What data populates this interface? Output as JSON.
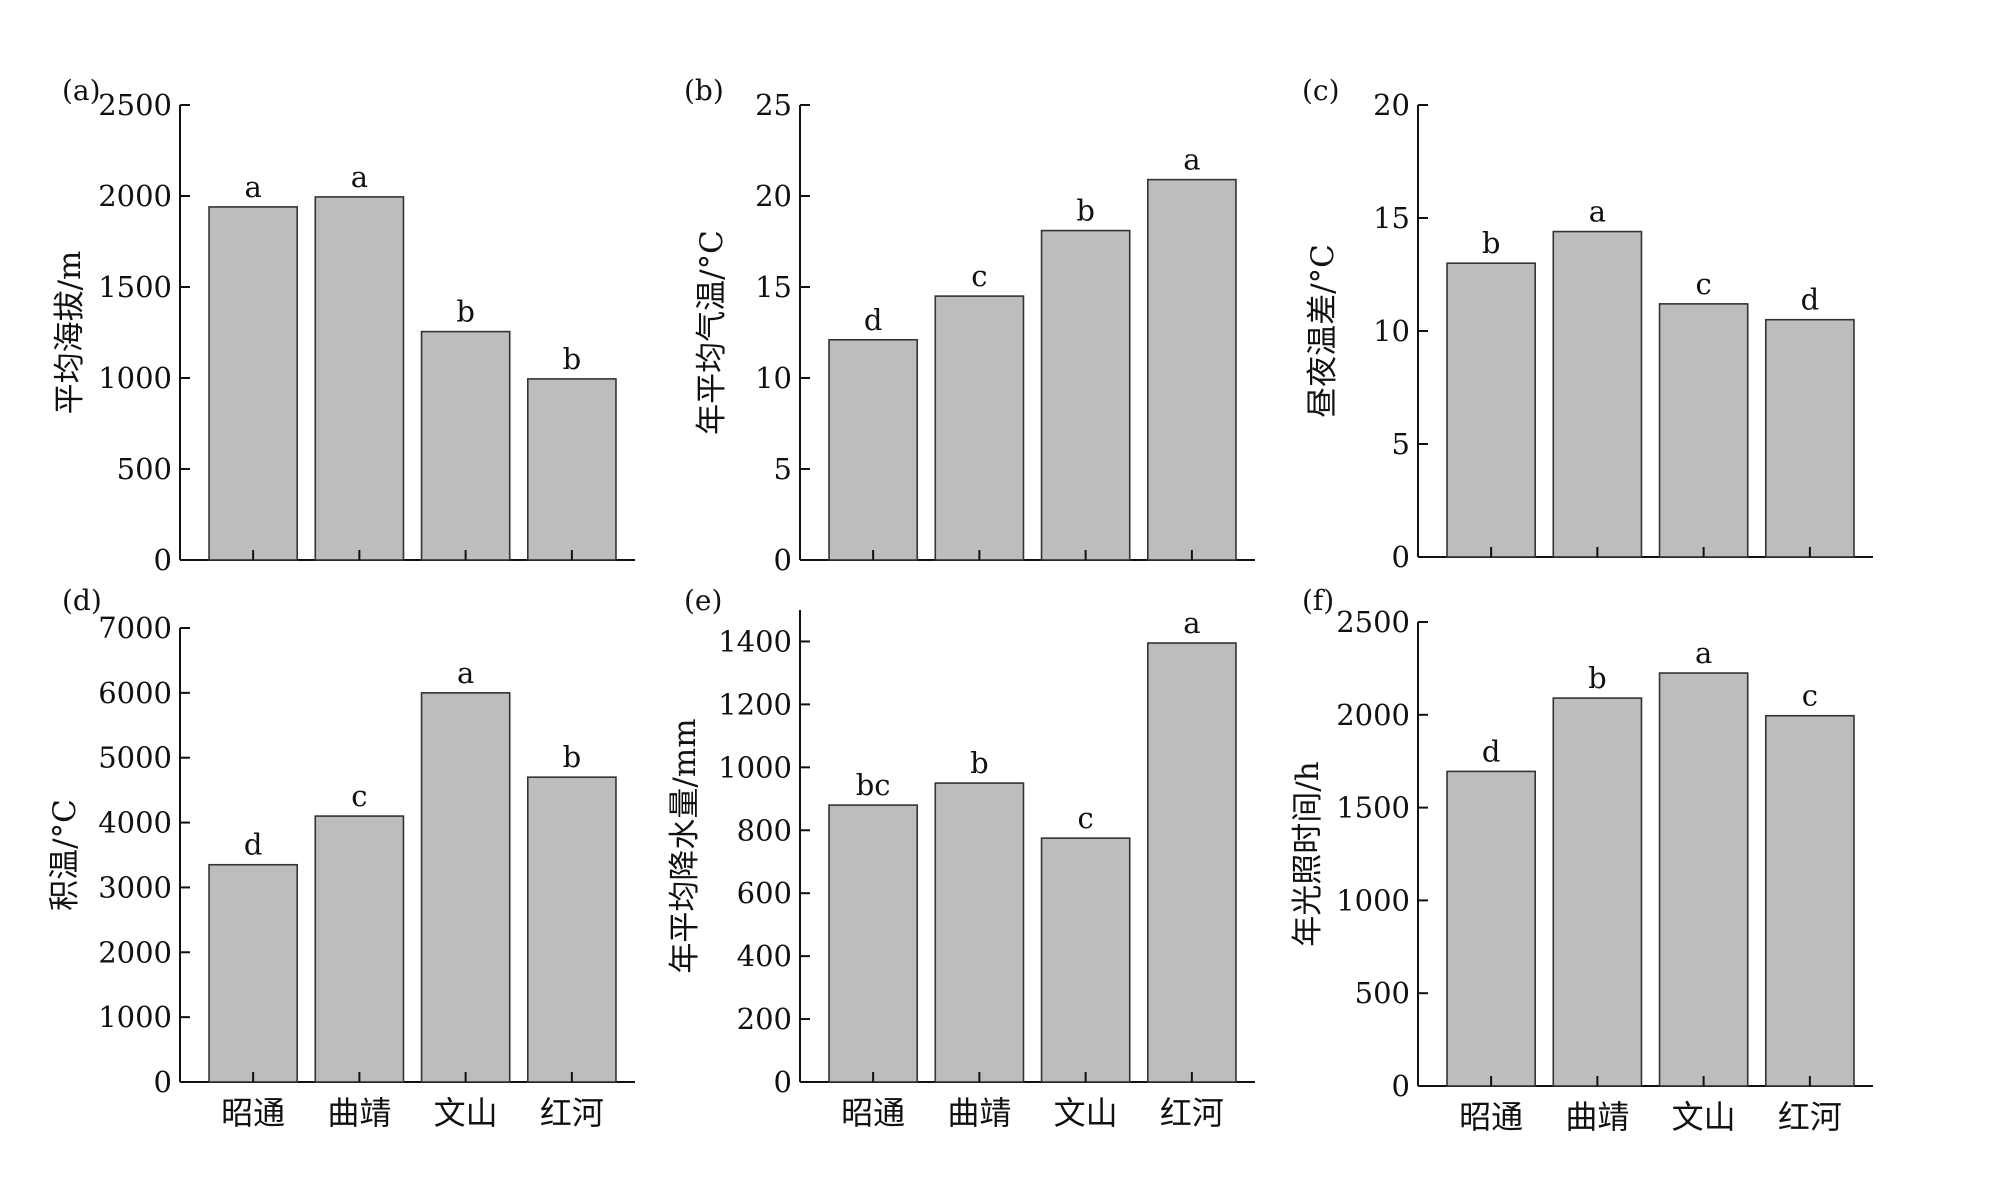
{
  "categories": [
    "昭通",
    "曲靖",
    "文山",
    "红河"
  ],
  "chart_data": [
    {
      "type": "bar",
      "panel": "(a)",
      "ylabel": "平均海拔/m",
      "categories": [
        "昭通",
        "曲靖",
        "文山",
        "红河"
      ],
      "values": [
        1940,
        1995,
        1255,
        995
      ],
      "significance": [
        "a",
        "a",
        "b",
        "b"
      ],
      "ylim": [
        0,
        2500
      ],
      "yticks": [
        0,
        500,
        1000,
        1500,
        2000,
        2500
      ],
      "grid": false
    },
    {
      "type": "bar",
      "panel": "(b)",
      "ylabel": "年平均气温/°C",
      "categories": [
        "昭通",
        "曲靖",
        "文山",
        "红河"
      ],
      "values": [
        12.1,
        14.5,
        18.1,
        20.9
      ],
      "significance": [
        "d",
        "c",
        "b",
        "a"
      ],
      "ylim": [
        0,
        25
      ],
      "yticks": [
        0,
        5,
        10,
        15,
        20,
        25
      ],
      "grid": false
    },
    {
      "type": "bar",
      "panel": "(c)",
      "ylabel": "昼夜温差/°C",
      "categories": [
        "昭通",
        "曲靖",
        "文山",
        "红河"
      ],
      "values": [
        13.0,
        14.4,
        11.2,
        10.5
      ],
      "significance": [
        "b",
        "a",
        "c",
        "d"
      ],
      "ylim": [
        0,
        20
      ],
      "yticks": [
        0,
        5,
        10,
        15,
        20
      ],
      "grid": false
    },
    {
      "type": "bar",
      "panel": "(d)",
      "ylabel": "积温/°C",
      "categories": [
        "昭通",
        "曲靖",
        "文山",
        "红河"
      ],
      "values": [
        3350,
        4100,
        6000,
        4700
      ],
      "significance": [
        "d",
        "c",
        "a",
        "b"
      ],
      "ylim": [
        0,
        7000
      ],
      "yticks": [
        0,
        1000,
        2000,
        3000,
        4000,
        5000,
        6000,
        7000
      ],
      "grid": false
    },
    {
      "type": "bar",
      "panel": "(e)",
      "ylabel": "年平均降水量/mm",
      "categories": [
        "昭通",
        "曲靖",
        "文山",
        "红河"
      ],
      "values": [
        880,
        950,
        775,
        1395
      ],
      "significance": [
        "bc",
        "b",
        "c",
        "a"
      ],
      "ylim": [
        0,
        1500
      ],
      "yticks": [
        0,
        200,
        400,
        600,
        800,
        1000,
        1200,
        1400
      ],
      "grid": false
    },
    {
      "type": "bar",
      "panel": "(f)",
      "ylabel": "年光照时间/h",
      "categories": [
        "昭通",
        "曲靖",
        "文山",
        "红河"
      ],
      "values": [
        1695,
        2090,
        2225,
        1995
      ],
      "significance": [
        "d",
        "b",
        "a",
        "c"
      ],
      "ylim": [
        0,
        2500
      ],
      "yticks": [
        0,
        500,
        1000,
        1500,
        2000,
        2500
      ],
      "grid": false
    }
  ],
  "colors": {
    "bar_fill": "#bdbdbd",
    "bar_stroke": "#333333",
    "axis": "#111111"
  }
}
